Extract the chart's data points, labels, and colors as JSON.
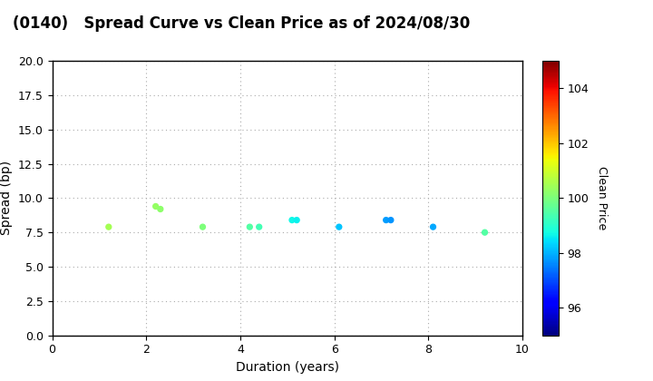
{
  "title": "(0140)   Spread Curve vs Clean Price as of 2024/08/30",
  "xlabel": "Duration (years)",
  "ylabel": "Spread (bp)",
  "colorbar_label": "Clean Price",
  "xlim": [
    0,
    10
  ],
  "ylim": [
    0.0,
    20.0
  ],
  "yticks": [
    0.0,
    2.5,
    5.0,
    7.5,
    10.0,
    12.5,
    15.0,
    17.5,
    20.0
  ],
  "xticks": [
    0,
    2,
    4,
    6,
    8,
    10
  ],
  "colorbar_min": 95.0,
  "colorbar_max": 105.0,
  "colorbar_ticks": [
    96,
    98,
    100,
    102,
    104
  ],
  "points": [
    {
      "duration": 1.2,
      "spread": 7.9,
      "price": 100.5
    },
    {
      "duration": 2.2,
      "spread": 9.4,
      "price": 100.3
    },
    {
      "duration": 2.3,
      "spread": 9.2,
      "price": 100.2
    },
    {
      "duration": 3.2,
      "spread": 7.9,
      "price": 100.0
    },
    {
      "duration": 4.2,
      "spread": 7.9,
      "price": 99.5
    },
    {
      "duration": 4.4,
      "spread": 7.9,
      "price": 99.3
    },
    {
      "duration": 5.1,
      "spread": 8.4,
      "price": 98.7
    },
    {
      "duration": 5.2,
      "spread": 8.4,
      "price": 98.6
    },
    {
      "duration": 6.1,
      "spread": 7.9,
      "price": 98.2
    },
    {
      "duration": 7.1,
      "spread": 8.4,
      "price": 97.8
    },
    {
      "duration": 7.2,
      "spread": 8.4,
      "price": 97.7
    },
    {
      "duration": 8.1,
      "spread": 7.9,
      "price": 97.9
    },
    {
      "duration": 9.2,
      "spread": 7.5,
      "price": 99.5
    }
  ],
  "background_color": "#ffffff",
  "marker_size": 18,
  "colormap": "jet",
  "title_fontsize": 12,
  "axis_fontsize": 10,
  "tick_fontsize": 9,
  "cbar_fontsize": 9
}
